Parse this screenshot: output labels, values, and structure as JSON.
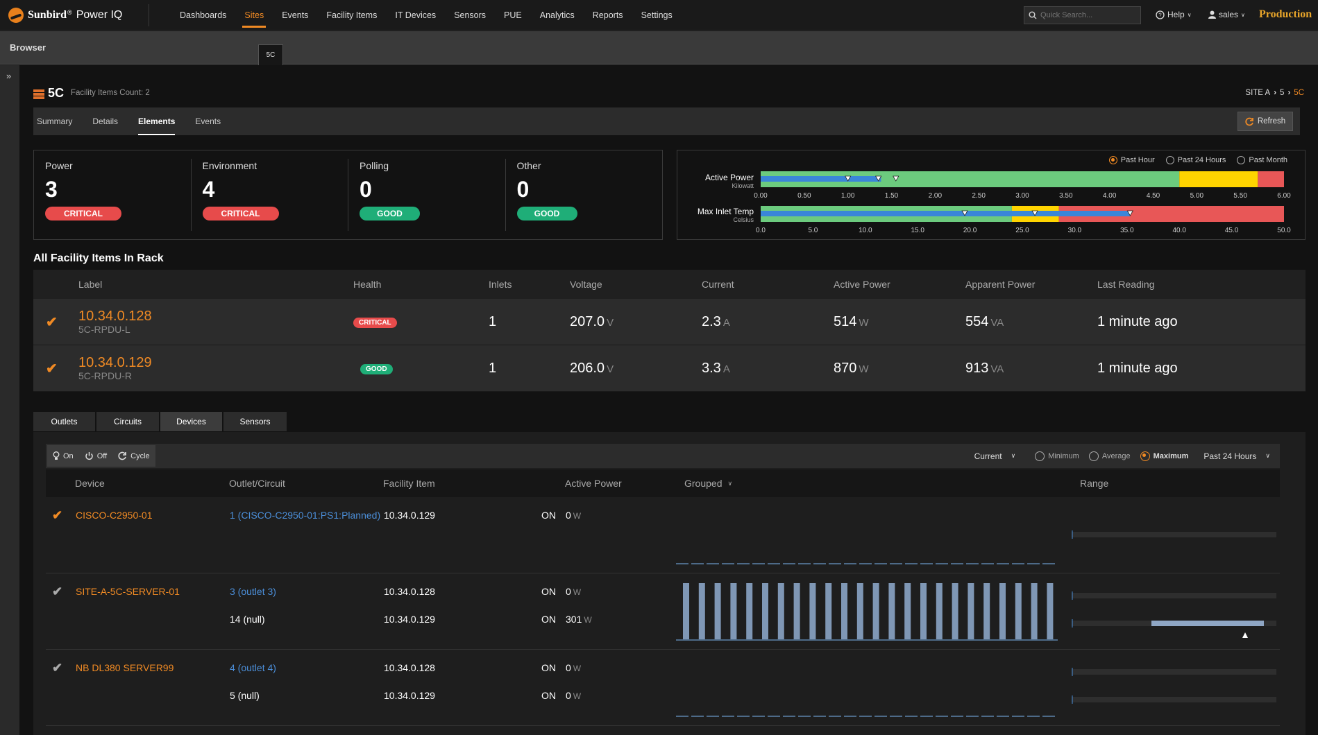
{
  "app": {
    "brand": "Sunbird",
    "product": "Power IQ",
    "reg": "®",
    "env": "Production"
  },
  "nav": [
    "Dashboards",
    "Sites",
    "Events",
    "Facility Items",
    "IT Devices",
    "Sensors",
    "PUE",
    "Analytics",
    "Reports",
    "Settings"
  ],
  "search": {
    "placeholder": "Quick Search..."
  },
  "help_label": "Help",
  "user_label": "sales",
  "browser": {
    "title": "Browser",
    "tab": "5C"
  },
  "rack": {
    "name": "5C",
    "count": "Facility Items Count: 2",
    "breadcrumb": [
      "SITE A",
      "5",
      "5C"
    ]
  },
  "subtabs": [
    "Summary",
    "Details",
    "Elements",
    "Events"
  ],
  "refresh_label": "Refresh",
  "summary": [
    {
      "title": "Power",
      "value": "3",
      "status": "CRITICAL"
    },
    {
      "title": "Environment",
      "value": "4",
      "status": "CRITICAL"
    },
    {
      "title": "Polling",
      "value": "0",
      "status": "GOOD"
    },
    {
      "title": "Other",
      "value": "0",
      "status": "GOOD"
    }
  ],
  "range_options": [
    {
      "label": "Past Hour",
      "selected": true
    },
    {
      "label": "Past 24 Hours",
      "selected": false
    },
    {
      "label": "Past Month",
      "selected": false
    }
  ],
  "gauges": [
    {
      "name": "Active Power",
      "unit": "Kilowatt",
      "ticks": [
        "0.00",
        "0.50",
        "1.00",
        "1.50",
        "2.00",
        "2.50",
        "3.00",
        "3.50",
        "4.00",
        "4.50",
        "5.00",
        "5.50",
        "6.00"
      ],
      "min": 0,
      "max": 6,
      "zones": [
        {
          "from": 0,
          "to": 4.8,
          "color": "#6ccb7e"
        },
        {
          "from": 4.8,
          "to": 5.7,
          "color": "#ffd400"
        },
        {
          "from": 5.7,
          "to": 6,
          "color": "#e85757"
        }
      ],
      "blue_to": 1.38,
      "markers": [
        1.0,
        1.35,
        1.55
      ]
    },
    {
      "name": "Max Inlet Temp",
      "unit": "Celsius",
      "ticks": [
        "0.0",
        "5.0",
        "10.0",
        "15.0",
        "20.0",
        "25.0",
        "30.0",
        "35.0",
        "40.0",
        "45.0",
        "50.0"
      ],
      "min": 0,
      "max": 50,
      "zones": [
        {
          "from": 0,
          "to": 24,
          "color": "#6ccb7e"
        },
        {
          "from": 24,
          "to": 28.5,
          "color": "#ffd400"
        },
        {
          "from": 28.5,
          "to": 50,
          "color": "#e85757"
        }
      ],
      "blue_to": 35.3,
      "markers": [
        19.5,
        26.2,
        35.3
      ]
    }
  ],
  "facility_table": {
    "title": "All Facility Items In Rack",
    "headers": [
      "Label",
      "Health",
      "Inlets",
      "Voltage",
      "Current",
      "Active Power",
      "Apparent Power",
      "Last Reading"
    ],
    "rows": [
      {
        "label": "10.34.0.128",
        "sub": "5C-RPDU-L",
        "health": "CRITICAL",
        "inlets": "1",
        "voltage": "207.0",
        "voltage_unit": "V",
        "current": "2.3",
        "current_unit": "A",
        "active": "514",
        "active_unit": "W",
        "apparent": "554",
        "apparent_unit": "VA",
        "last": "1 minute ago"
      },
      {
        "label": "10.34.0.129",
        "sub": "5C-RPDU-R",
        "health": "GOOD",
        "inlets": "1",
        "voltage": "206.0",
        "voltage_unit": "V",
        "current": "3.3",
        "current_unit": "A",
        "active": "870",
        "active_unit": "W",
        "apparent": "913",
        "apparent_unit": "VA",
        "last": "1 minute ago"
      }
    ]
  },
  "bottom_tabs": [
    "Outlets",
    "Circuits",
    "Devices",
    "Sensors"
  ],
  "toolbar": {
    "on": "On",
    "off": "Off",
    "cycle": "Cycle",
    "current": "Current",
    "minimum": "Minimum",
    "average": "Average",
    "maximum": "Maximum",
    "period": "Past 24 Hours"
  },
  "devices": {
    "headers": [
      "Device",
      "Outlet/Circuit",
      "Facility Item",
      "Active Power",
      "Grouped",
      "Range"
    ],
    "rows": [
      {
        "device": "CISCO-C2950-01",
        "checked": true,
        "entries": [
          {
            "oc": "1 (CISCO-C2950-01:PS1:Planned)",
            "oc_link": true,
            "fi": "10.34.0.129",
            "state": "ON",
            "power": "0",
            "unit": "W"
          }
        ],
        "bars": false
      },
      {
        "device": "SITE-A-5C-SERVER-01",
        "checked": false,
        "entries": [
          {
            "oc": "3 (outlet 3)",
            "oc_link": true,
            "fi": "10.34.0.128",
            "state": "ON",
            "power": "0",
            "unit": "W"
          },
          {
            "oc": "14 (null)",
            "oc_link": false,
            "fi": "10.34.0.129",
            "state": "ON",
            "power": "301",
            "unit": "W"
          }
        ],
        "bars": true
      },
      {
        "device": "NB DL380 SERVER99",
        "checked": false,
        "entries": [
          {
            "oc": "4 (outlet 4)",
            "oc_link": true,
            "fi": "10.34.0.128",
            "state": "ON",
            "power": "0",
            "unit": "W"
          },
          {
            "oc": "5 (null)",
            "oc_link": false,
            "fi": "10.34.0.129",
            "state": "ON",
            "power": "0",
            "unit": "W"
          }
        ],
        "bars": false
      }
    ]
  }
}
